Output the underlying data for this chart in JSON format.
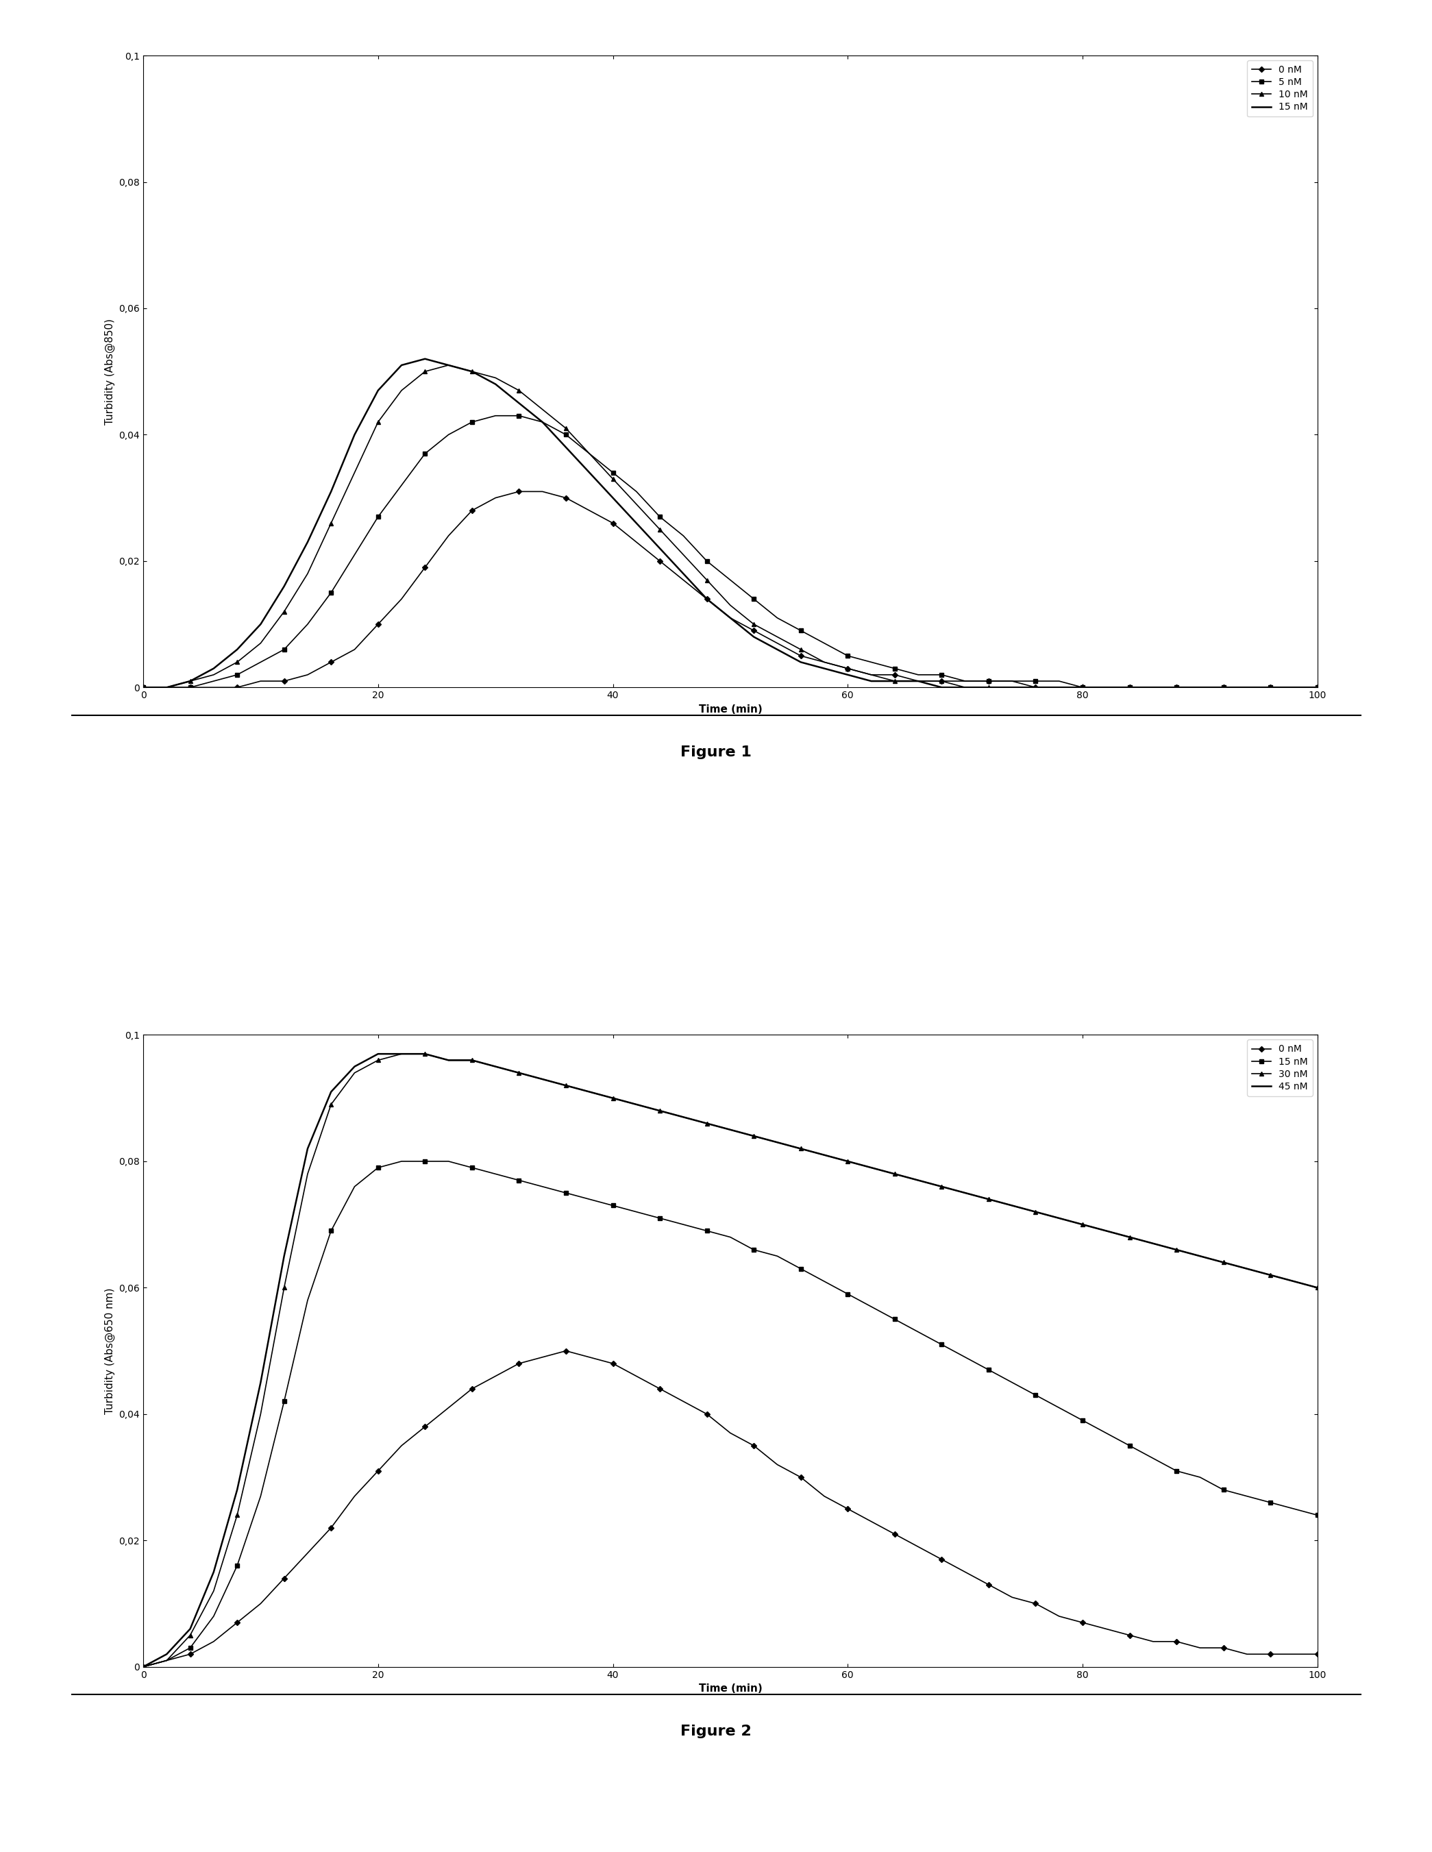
{
  "fig1": {
    "title": "Figure 1",
    "ylabel": "Turbidity (Abs@850)",
    "xlabel": "Time (min)",
    "xlim": [
      0,
      100
    ],
    "ylim": [
      0,
      0.1
    ],
    "yticks": [
      0,
      0.02,
      0.04,
      0.06,
      0.08,
      0.1
    ],
    "ytick_labels": [
      "0",
      "0,02",
      "0,04",
      "0,06",
      "0,08",
      "0,1"
    ],
    "xticks": [
      0,
      20,
      40,
      60,
      80,
      100
    ],
    "series": [
      {
        "label": "0 nM",
        "marker": "D",
        "color": "#000000",
        "linewidth": 1.2,
        "markersize": 4,
        "markevery": 2,
        "x": [
          0,
          2,
          4,
          6,
          8,
          10,
          12,
          14,
          16,
          18,
          20,
          22,
          24,
          26,
          28,
          30,
          32,
          34,
          36,
          38,
          40,
          42,
          44,
          46,
          48,
          50,
          52,
          54,
          56,
          58,
          60,
          62,
          64,
          66,
          68,
          70,
          72,
          74,
          76,
          78,
          80,
          82,
          84,
          86,
          88,
          90,
          92,
          94,
          96,
          98,
          100
        ],
        "y": [
          0,
          0,
          0,
          0,
          0,
          0.001,
          0.001,
          0.002,
          0.004,
          0.006,
          0.01,
          0.014,
          0.019,
          0.024,
          0.028,
          0.03,
          0.031,
          0.031,
          0.03,
          0.028,
          0.026,
          0.023,
          0.02,
          0.017,
          0.014,
          0.011,
          0.009,
          0.007,
          0.005,
          0.004,
          0.003,
          0.002,
          0.002,
          0.001,
          0.001,
          0.001,
          0.001,
          0.001,
          0,
          0,
          0,
          0,
          0,
          0,
          0,
          0,
          0,
          0,
          0,
          0,
          0
        ]
      },
      {
        "label": "5 nM",
        "marker": "s",
        "color": "#000000",
        "linewidth": 1.2,
        "markersize": 4,
        "markevery": 2,
        "x": [
          0,
          2,
          4,
          6,
          8,
          10,
          12,
          14,
          16,
          18,
          20,
          22,
          24,
          26,
          28,
          30,
          32,
          34,
          36,
          38,
          40,
          42,
          44,
          46,
          48,
          50,
          52,
          54,
          56,
          58,
          60,
          62,
          64,
          66,
          68,
          70,
          72,
          74,
          76,
          78,
          80,
          82,
          84,
          86,
          88,
          90,
          92,
          94,
          96,
          98,
          100
        ],
        "y": [
          0,
          0,
          0,
          0.001,
          0.002,
          0.004,
          0.006,
          0.01,
          0.015,
          0.021,
          0.027,
          0.032,
          0.037,
          0.04,
          0.042,
          0.043,
          0.043,
          0.042,
          0.04,
          0.037,
          0.034,
          0.031,
          0.027,
          0.024,
          0.02,
          0.017,
          0.014,
          0.011,
          0.009,
          0.007,
          0.005,
          0.004,
          0.003,
          0.002,
          0.002,
          0.001,
          0.001,
          0.001,
          0.001,
          0.001,
          0,
          0,
          0,
          0,
          0,
          0,
          0,
          0,
          0,
          0,
          0
        ]
      },
      {
        "label": "10 nM",
        "marker": "^",
        "color": "#000000",
        "linewidth": 1.2,
        "markersize": 4,
        "markevery": 2,
        "x": [
          0,
          2,
          4,
          6,
          8,
          10,
          12,
          14,
          16,
          18,
          20,
          22,
          24,
          26,
          28,
          30,
          32,
          34,
          36,
          38,
          40,
          42,
          44,
          46,
          48,
          50,
          52,
          54,
          56,
          58,
          60,
          62,
          64,
          66,
          68,
          70,
          72,
          74,
          76,
          78,
          80,
          82,
          84,
          86,
          88,
          90,
          92,
          94,
          96,
          98,
          100
        ],
        "y": [
          0,
          0,
          0.001,
          0.002,
          0.004,
          0.007,
          0.012,
          0.018,
          0.026,
          0.034,
          0.042,
          0.047,
          0.05,
          0.051,
          0.05,
          0.049,
          0.047,
          0.044,
          0.041,
          0.037,
          0.033,
          0.029,
          0.025,
          0.021,
          0.017,
          0.013,
          0.01,
          0.008,
          0.006,
          0.004,
          0.003,
          0.002,
          0.001,
          0.001,
          0.001,
          0,
          0,
          0,
          0,
          0,
          0,
          0,
          0,
          0,
          0,
          0,
          0,
          0,
          0,
          0,
          0
        ]
      },
      {
        "label": "15 nM",
        "marker": null,
        "color": "#000000",
        "linewidth": 1.8,
        "markersize": 0,
        "markevery": 2,
        "x": [
          0,
          2,
          4,
          6,
          8,
          10,
          12,
          14,
          16,
          18,
          20,
          22,
          24,
          26,
          28,
          30,
          32,
          34,
          36,
          38,
          40,
          42,
          44,
          46,
          48,
          50,
          52,
          54,
          56,
          58,
          60,
          62,
          64,
          66,
          68,
          70,
          72,
          74,
          76,
          78,
          80,
          82,
          84,
          86,
          88,
          90,
          92,
          94,
          96,
          98,
          100
        ],
        "y": [
          0,
          0,
          0.001,
          0.003,
          0.006,
          0.01,
          0.016,
          0.023,
          0.031,
          0.04,
          0.047,
          0.051,
          0.052,
          0.051,
          0.05,
          0.048,
          0.045,
          0.042,
          0.038,
          0.034,
          0.03,
          0.026,
          0.022,
          0.018,
          0.014,
          0.011,
          0.008,
          0.006,
          0.004,
          0.003,
          0.002,
          0.001,
          0.001,
          0.001,
          0,
          0,
          0,
          0,
          0,
          0,
          0,
          0,
          0,
          0,
          0,
          0,
          0,
          0,
          0,
          0,
          0
        ]
      }
    ]
  },
  "fig2": {
    "title": "Figure 2",
    "ylabel": "Turbidity (Abs@650 nm)",
    "xlabel": "Time (min)",
    "xlim": [
      0,
      100
    ],
    "ylim": [
      0,
      0.1
    ],
    "yticks": [
      0,
      0.02,
      0.04,
      0.06,
      0.08,
      0.1
    ],
    "ytick_labels": [
      "0",
      "0,02",
      "0,04",
      "0,06",
      "0,08",
      "0,1"
    ],
    "xticks": [
      0,
      20,
      40,
      60,
      80,
      100
    ],
    "series": [
      {
        "label": "0 nM",
        "marker": "D",
        "color": "#000000",
        "linewidth": 1.2,
        "markersize": 4,
        "markevery": 2,
        "x": [
          0,
          2,
          4,
          6,
          8,
          10,
          12,
          14,
          16,
          18,
          20,
          22,
          24,
          26,
          28,
          30,
          32,
          34,
          36,
          38,
          40,
          42,
          44,
          46,
          48,
          50,
          52,
          54,
          56,
          58,
          60,
          62,
          64,
          66,
          68,
          70,
          72,
          74,
          76,
          78,
          80,
          82,
          84,
          86,
          88,
          90,
          92,
          94,
          96,
          98,
          100
        ],
        "y": [
          0,
          0.001,
          0.002,
          0.004,
          0.007,
          0.01,
          0.014,
          0.018,
          0.022,
          0.027,
          0.031,
          0.035,
          0.038,
          0.041,
          0.044,
          0.046,
          0.048,
          0.049,
          0.05,
          0.049,
          0.048,
          0.046,
          0.044,
          0.042,
          0.04,
          0.037,
          0.035,
          0.032,
          0.03,
          0.027,
          0.025,
          0.023,
          0.021,
          0.019,
          0.017,
          0.015,
          0.013,
          0.011,
          0.01,
          0.008,
          0.007,
          0.006,
          0.005,
          0.004,
          0.004,
          0.003,
          0.003,
          0.002,
          0.002,
          0.002,
          0.002
        ]
      },
      {
        "label": "15 nM",
        "marker": "s",
        "color": "#000000",
        "linewidth": 1.2,
        "markersize": 4,
        "markevery": 2,
        "x": [
          0,
          2,
          4,
          6,
          8,
          10,
          12,
          14,
          16,
          18,
          20,
          22,
          24,
          26,
          28,
          30,
          32,
          34,
          36,
          38,
          40,
          42,
          44,
          46,
          48,
          50,
          52,
          54,
          56,
          58,
          60,
          62,
          64,
          66,
          68,
          70,
          72,
          74,
          76,
          78,
          80,
          82,
          84,
          86,
          88,
          90,
          92,
          94,
          96,
          98,
          100
        ],
        "y": [
          0,
          0.001,
          0.003,
          0.008,
          0.016,
          0.027,
          0.042,
          0.058,
          0.069,
          0.076,
          0.079,
          0.08,
          0.08,
          0.08,
          0.079,
          0.078,
          0.077,
          0.076,
          0.075,
          0.074,
          0.073,
          0.072,
          0.071,
          0.07,
          0.069,
          0.068,
          0.066,
          0.065,
          0.063,
          0.061,
          0.059,
          0.057,
          0.055,
          0.053,
          0.051,
          0.049,
          0.047,
          0.045,
          0.043,
          0.041,
          0.039,
          0.037,
          0.035,
          0.033,
          0.031,
          0.03,
          0.028,
          0.027,
          0.026,
          0.025,
          0.024
        ]
      },
      {
        "label": "30 nM",
        "marker": "^",
        "color": "#000000",
        "linewidth": 1.2,
        "markersize": 4,
        "markevery": 2,
        "x": [
          0,
          2,
          4,
          6,
          8,
          10,
          12,
          14,
          16,
          18,
          20,
          22,
          24,
          26,
          28,
          30,
          32,
          34,
          36,
          38,
          40,
          42,
          44,
          46,
          48,
          50,
          52,
          54,
          56,
          58,
          60,
          62,
          64,
          66,
          68,
          70,
          72,
          74,
          76,
          78,
          80,
          82,
          84,
          86,
          88,
          90,
          92,
          94,
          96,
          98,
          100
        ],
        "y": [
          0,
          0.001,
          0.005,
          0.012,
          0.024,
          0.04,
          0.06,
          0.078,
          0.089,
          0.094,
          0.096,
          0.097,
          0.097,
          0.096,
          0.096,
          0.095,
          0.094,
          0.093,
          0.092,
          0.091,
          0.09,
          0.089,
          0.088,
          0.087,
          0.086,
          0.085,
          0.084,
          0.083,
          0.082,
          0.081,
          0.08,
          0.079,
          0.078,
          0.077,
          0.076,
          0.075,
          0.074,
          0.073,
          0.072,
          0.071,
          0.07,
          0.069,
          0.068,
          0.067,
          0.066,
          0.065,
          0.064,
          0.063,
          0.062,
          0.061,
          0.06
        ]
      },
      {
        "label": "45 nM",
        "marker": null,
        "color": "#000000",
        "linewidth": 1.8,
        "markersize": 0,
        "markevery": 2,
        "x": [
          0,
          2,
          4,
          6,
          8,
          10,
          12,
          14,
          16,
          18,
          20,
          22,
          24,
          26,
          28,
          30,
          32,
          34,
          36,
          38,
          40,
          42,
          44,
          46,
          48,
          50,
          52,
          54,
          56,
          58,
          60,
          62,
          64,
          66,
          68,
          70,
          72,
          74,
          76,
          78,
          80,
          82,
          84,
          86,
          88,
          90,
          92,
          94,
          96,
          98,
          100
        ],
        "y": [
          0,
          0.002,
          0.006,
          0.015,
          0.028,
          0.045,
          0.065,
          0.082,
          0.091,
          0.095,
          0.097,
          0.097,
          0.097,
          0.096,
          0.096,
          0.095,
          0.094,
          0.093,
          0.092,
          0.091,
          0.09,
          0.089,
          0.088,
          0.087,
          0.086,
          0.085,
          0.084,
          0.083,
          0.082,
          0.081,
          0.08,
          0.079,
          0.078,
          0.077,
          0.076,
          0.075,
          0.074,
          0.073,
          0.072,
          0.071,
          0.07,
          0.069,
          0.068,
          0.067,
          0.066,
          0.065,
          0.064,
          0.063,
          0.062,
          0.061,
          0.06
        ]
      }
    ]
  },
  "background_color": "#ffffff",
  "figure_label_fontsize": 16,
  "axis_label_fontsize": 11,
  "tick_fontsize": 10,
  "legend_fontsize": 10,
  "separator_color": "#000000",
  "separator_linewidth": 1.5
}
